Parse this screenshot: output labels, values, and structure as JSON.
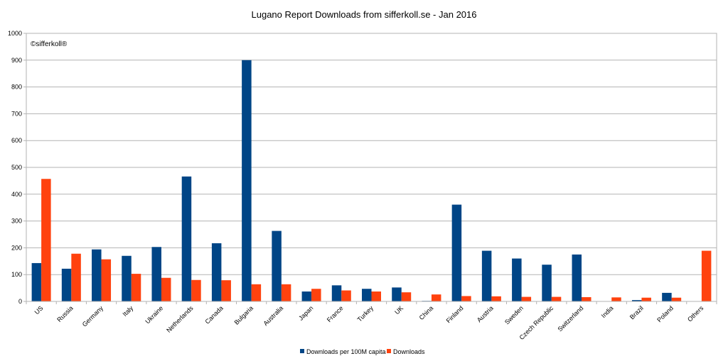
{
  "chart_data": {
    "type": "bar",
    "title": "Lugano Report Downloads from sifferkoll.se - Jan 2016",
    "watermark": "©sifferkoll®",
    "xlabel": "",
    "ylabel": "",
    "ylim": [
      0,
      1000
    ],
    "yticks": [
      0,
      100,
      200,
      300,
      400,
      500,
      600,
      700,
      800,
      900,
      1000
    ],
    "grid": true,
    "legend_position": "bottom",
    "categories": [
      "US",
      "Russia",
      "Germany",
      "Italy",
      "Ukraine",
      "Netherlands",
      "Canada",
      "Bulgaria",
      "Australia",
      "Japan",
      "France",
      "Turkey",
      "UK",
      "China",
      "Finland",
      "Austria",
      "Sweden",
      "Czech Republic",
      "Switzerland",
      "India",
      "Brazil",
      "Poland",
      "Others"
    ],
    "series": [
      {
        "name": "Downloads per 100M capita",
        "color": "#004586",
        "values": [
          143,
          122,
          194,
          170,
          203,
          466,
          217,
          900,
          263,
          37,
          60,
          47,
          52,
          2,
          361,
          189,
          160,
          137,
          175,
          1,
          5,
          32,
          null
        ]
      },
      {
        "name": "Downloads",
        "color": "#ff420e",
        "values": [
          457,
          178,
          157,
          103,
          88,
          80,
          79,
          64,
          64,
          47,
          41,
          37,
          34,
          26,
          20,
          19,
          17,
          17,
          16,
          15,
          14,
          14,
          189
        ]
      }
    ]
  }
}
